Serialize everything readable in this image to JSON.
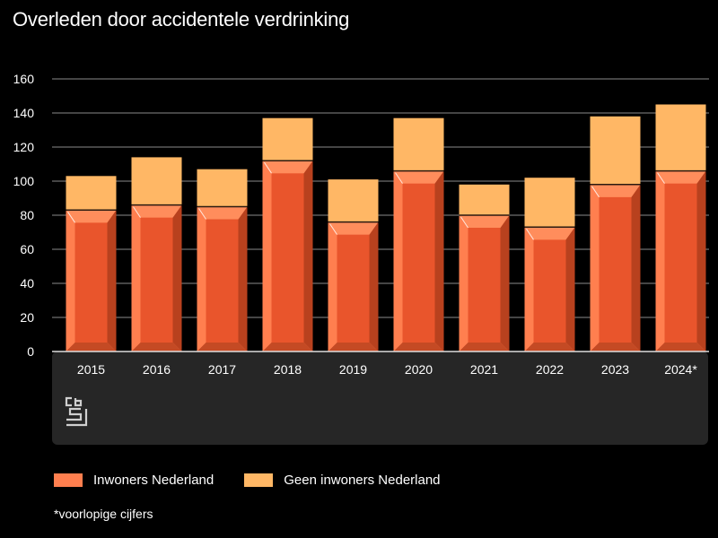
{
  "chart_data": {
    "type": "bar",
    "stacked": true,
    "title": "Overleden door accidentele verdrinking",
    "categories": [
      "2015",
      "2016",
      "2017",
      "2018",
      "2019",
      "2020",
      "2021",
      "2022",
      "2023",
      "2024*"
    ],
    "series": [
      {
        "name": "Inwoners Nederland",
        "color": "#ff7f4f",
        "values": [
          83,
          86,
          85,
          112,
          76,
          106,
          80,
          73,
          98,
          106
        ]
      },
      {
        "name": "Geen inwoners Nederland",
        "color": "#ffb765",
        "values": [
          20,
          28,
          22,
          25,
          25,
          31,
          18,
          29,
          40,
          39
        ]
      }
    ],
    "ylim": [
      0,
      160
    ],
    "yticks": [
      0,
      20,
      40,
      60,
      80,
      100,
      120,
      140,
      160
    ],
    "grid": true,
    "legend_position": "bottom",
    "footnote": "*voorlopige cijfers"
  },
  "source_logo": "cbs",
  "colors": {
    "background": "#000000",
    "panel": "#262626",
    "grid": "#8a8a8a",
    "axis_text": "#ffffff"
  }
}
